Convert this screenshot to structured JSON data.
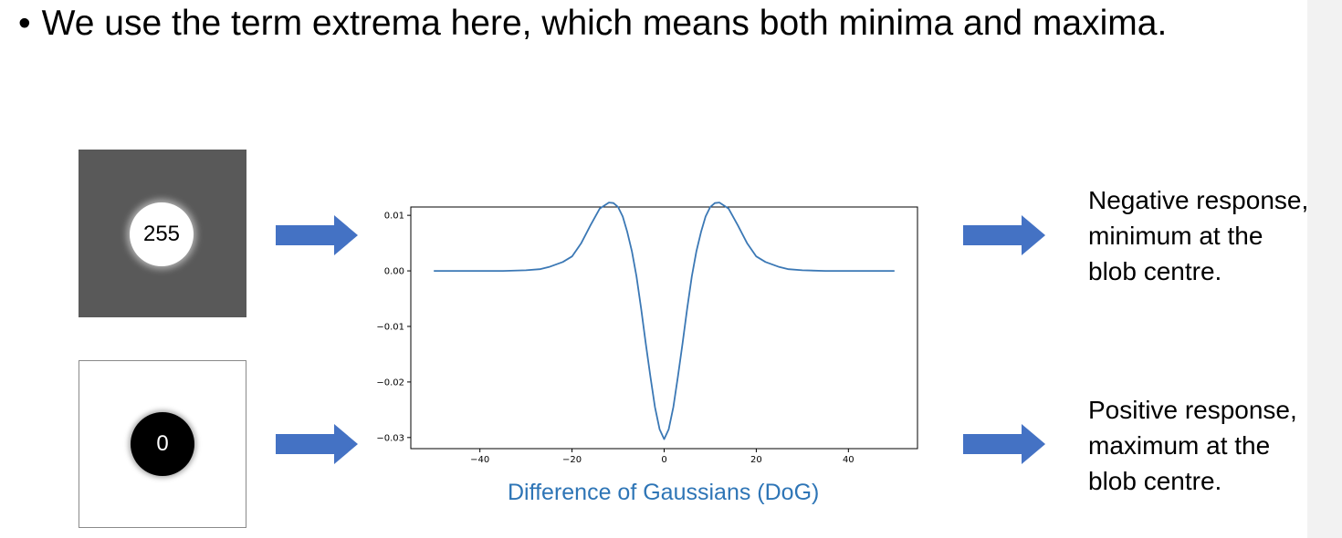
{
  "slide": {
    "bullet_symbol": "•",
    "bullet_text": "We use the term extrema here, which means both minima and maxima."
  },
  "blobs": [
    {
      "label": "255"
    },
    {
      "label": "0"
    }
  ],
  "responses": [
    {
      "lines": [
        "Negative response,",
        "minimum at the",
        "blob centre."
      ]
    },
    {
      "lines": [
        "Positive response,",
        "maximum at the",
        "blob centre."
      ]
    }
  ],
  "chart_caption": "Difference of Gaussians (DoG)",
  "colors": {
    "arrow": "#4472c4",
    "curve": "#3b78b5",
    "caption": "#2e75b6"
  },
  "chart_data": {
    "type": "line",
    "xlim": [
      -55,
      55
    ],
    "ylim": [
      -0.032,
      0.0115
    ],
    "xticks": [
      -40,
      -20,
      0,
      20,
      40
    ],
    "yticks": [
      0.01,
      0.0,
      -0.01,
      -0.02,
      -0.03
    ],
    "xtick_labels": [
      "−40",
      "−20",
      "0",
      "20",
      "40"
    ],
    "ytick_labels": [
      "0.01",
      "0.00",
      "−0.01",
      "−0.02",
      "−0.03"
    ],
    "grid": false,
    "series": [
      {
        "x": [
          -50,
          -45,
          -40,
          -35,
          -30,
          -27,
          -25,
          -22,
          -20,
          -18,
          -16,
          -14,
          -12,
          -11,
          -10,
          -9,
          -8,
          -7,
          -6,
          -5,
          -4,
          -3,
          -2,
          -1,
          0,
          1,
          2,
          3,
          4,
          5,
          6,
          7,
          8,
          9,
          10,
          11,
          12,
          14,
          16,
          18,
          20,
          22,
          25,
          27,
          30,
          35,
          40,
          45,
          50
        ],
        "y": [
          0,
          0,
          0,
          0,
          0.0001,
          0.0003,
          0.0007,
          0.0016,
          0.0026,
          0.005,
          0.0082,
          0.0112,
          0.0123,
          0.0122,
          0.0115,
          0.0098,
          0.007,
          0.0035,
          -0.001,
          -0.0068,
          -0.013,
          -0.019,
          -0.0245,
          -0.0285,
          -0.0303,
          -0.0285,
          -0.0245,
          -0.019,
          -0.013,
          -0.0068,
          -0.001,
          0.0035,
          0.007,
          0.0098,
          0.0115,
          0.0122,
          0.0123,
          0.0112,
          0.0082,
          0.005,
          0.0026,
          0.0016,
          0.0007,
          0.0003,
          0.0001,
          0,
          0,
          0,
          0
        ]
      }
    ]
  }
}
